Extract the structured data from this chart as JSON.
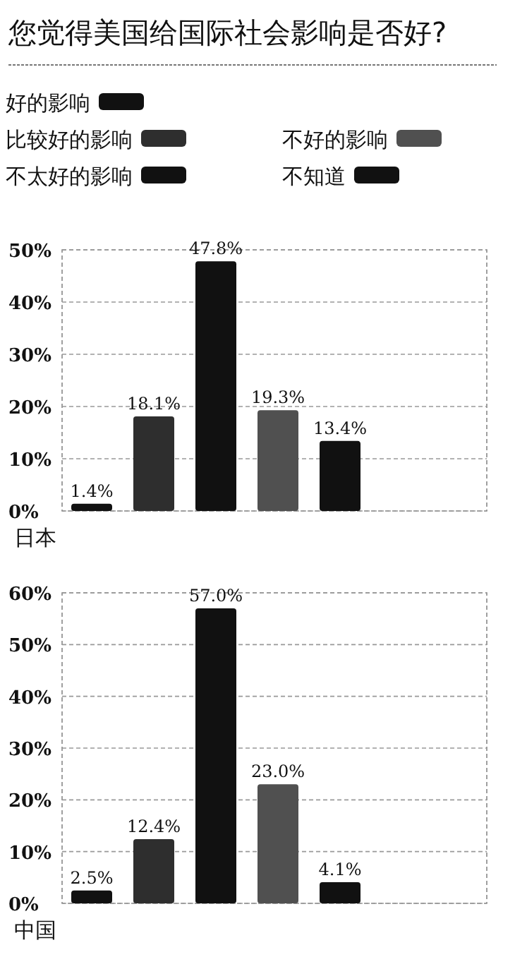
{
  "chart_data": [
    {
      "type": "bar",
      "title": "您觉得美国给国际社会影响是否好?",
      "xlabel": "日本",
      "categories": [
        null
      ],
      "ylim": [
        0,
        50
      ],
      "yticks": [
        {
          "value": 0,
          "label": "0%"
        },
        {
          "value": 10,
          "label": "10%"
        },
        {
          "value": 20,
          "label": "20%"
        },
        {
          "value": 30,
          "label": "30%"
        },
        {
          "value": 40,
          "label": "40%"
        },
        {
          "value": 50,
          "label": "50%"
        }
      ],
      "grid": "y",
      "legend": "top",
      "series": [
        {
          "name": "好的影响",
          "color": "#111111",
          "values": [
            1.4
          ],
          "value_labels": [
            "1.4%"
          ]
        },
        {
          "name": "比较好的影响",
          "color": "#2e2e2e",
          "values": [
            18.1
          ],
          "value_labels": [
            "18.1%"
          ]
        },
        {
          "name": "不太好的影响",
          "color": "#111111",
          "values": [
            47.8
          ],
          "value_labels": [
            "47.8%"
          ]
        },
        {
          "name": "不好的影响",
          "color": "#505050",
          "values": [
            19.3
          ],
          "value_labels": [
            "19.3%"
          ]
        },
        {
          "name": "不知道",
          "color": "#111111",
          "values": [
            13.4
          ],
          "value_labels": [
            "13.4%"
          ]
        }
      ]
    },
    {
      "type": "bar",
      "xlabel": "中国",
      "categories": [
        null
      ],
      "ylim": [
        0,
        60
      ],
      "yticks": [
        {
          "value": 0,
          "label": "0%"
        },
        {
          "value": 10,
          "label": "10%"
        },
        {
          "value": 20,
          "label": "20%"
        },
        {
          "value": 30,
          "label": "30%"
        },
        {
          "value": 40,
          "label": "40%"
        },
        {
          "value": 50,
          "label": "50%"
        },
        {
          "value": 60,
          "label": "60%"
        }
      ],
      "grid": "y",
      "series": [
        {
          "color": "#111111",
          "values": [
            2.5
          ],
          "value_labels": [
            "2.5%"
          ]
        },
        {
          "color": "#2e2e2e",
          "values": [
            12.4
          ],
          "value_labels": [
            "12.4%"
          ]
        },
        {
          "color": "#111111",
          "values": [
            57.0
          ],
          "value_labels": [
            "57.0%"
          ]
        },
        {
          "color": "#505050",
          "values": [
            23.0
          ],
          "value_labels": [
            "23.0%"
          ]
        },
        {
          "color": "#111111",
          "values": [
            4.1
          ],
          "value_labels": [
            "4.1%"
          ]
        }
      ]
    }
  ]
}
